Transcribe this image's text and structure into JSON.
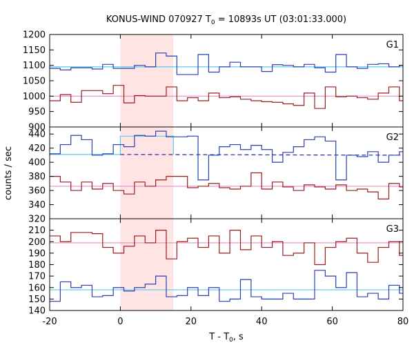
{
  "chart_data": {
    "type": "line",
    "title": "KONUS-WIND 070927 T",
    "title_sub": "0",
    "title_rest": " = 10893s UT (03:01:33.000)",
    "xlabel": "T - T",
    "xlabel_sub": "0",
    "xlabel_rest": ", s",
    "ylabel": "counts / sec",
    "xlim": [
      -20,
      80
    ],
    "xticks": [
      "-20",
      "0",
      "20",
      "40",
      "60",
      "80"
    ],
    "highlight": {
      "x_start": 0,
      "x_end": 15,
      "color": "#ffe4e4"
    },
    "colors": {
      "high": "#2a3faf",
      "low": "#9b1c1c",
      "high_bg": "#5bc7e8",
      "low_bg": "#e88cc8",
      "dashed": "#1a2a9a"
    },
    "bin_width": 3,
    "x_start": -20,
    "panels": [
      {
        "label": "G1",
        "ylim": [
          900,
          1200
        ],
        "yticks": [
          "900",
          "950",
          "1000",
          "1050",
          "1100",
          "1150",
          "1200"
        ],
        "series": [
          {
            "values": [
              1090,
              1085,
              1092,
              1092,
              1088,
              1103,
              1090,
              1090,
              1100,
              1095,
              1140,
              1130,
              1070,
              1070,
              1135,
              1078,
              1095,
              1110,
              1095,
              1095,
              1080,
              1102,
              1100,
              1095,
              1103,
              1092,
              1078,
              1135,
              1095,
              1090,
              1103,
              1105,
              1095,
              1100
            ]
          },
          {
            "values": [
              985,
              1005,
              980,
              1018,
              1018,
              1008,
              1035,
              978,
              1002,
              1000,
              1000,
              1030,
              985,
              995,
              985,
              1010,
              995,
              998,
              990,
              985,
              982,
              980,
              975,
              970,
              1010,
              960,
              1030,
              998,
              1000,
              995,
              990,
              1010,
              1030,
              985
            ]
          }
        ],
        "background": [
          {
            "type": "flat",
            "value": 1095
          },
          {
            "type": "flat",
            "value": 1000
          }
        ]
      },
      {
        "label": "G2",
        "ylim": [
          320,
          450
        ],
        "yticks": [
          "320",
          "340",
          "360",
          "380",
          "400",
          "420",
          "440"
        ],
        "series": [
          {
            "values": [
              412,
              425,
              438,
              432,
              410,
              412,
              425,
              422,
              438,
              437,
              444,
              436,
              436,
              437,
              375,
              410,
              422,
              425,
              418,
              424,
              418,
              400,
              414,
              422,
              432,
              436,
              430,
              375,
              410,
              408,
              415,
              400,
              410,
              415
            ]
          },
          {
            "values": [
              380,
              372,
              360,
              372,
              362,
              370,
              360,
              355,
              372,
              366,
              375,
              380,
              380,
              364,
              366,
              370,
              364,
              362,
              366,
              385,
              362,
              372,
              365,
              360,
              368,
              365,
              362,
              368,
              360,
              362,
              358,
              348,
              370,
              365
            ]
          }
        ],
        "background": [
          {
            "type": "flat",
            "value": 411,
            "x_end": 0
          },
          {
            "type": "flat",
            "value": 366
          }
        ],
        "source_level": {
          "value": 437,
          "x_start": 0,
          "x_end": 15
        },
        "dashed": {
          "from": 411,
          "to": 410,
          "x_start": 0,
          "x_end": 80
        }
      },
      {
        "label": "G3",
        "ylim": [
          140,
          220
        ],
        "yticks": [
          "140",
          "150",
          "160",
          "170",
          "180",
          "190",
          "200",
          "210"
        ],
        "series": [
          {
            "values": [
              148,
              165,
              160,
              162,
              152,
              153,
              160,
              157,
              160,
              163,
              170,
              152,
              153,
              160,
              153,
              160,
              148,
              150,
              167,
              152,
              150,
              150,
              155,
              150,
              150,
              175,
              170,
              160,
              173,
              152,
              155,
              150,
              162,
              155
            ]
          },
          {
            "values": [
              205,
              200,
              208,
              208,
              207,
              195,
              190,
              196,
              205,
              199,
              210,
              185,
              200,
              203,
              195,
              205,
              190,
              210,
              193,
              205,
              195,
              200,
              188,
              190,
              199,
              180,
              195,
              200,
              203,
              190,
              182,
              195,
              200,
              188
            ]
          }
        ],
        "background": [
          {
            "type": "flat",
            "value": 158
          },
          {
            "type": "flat",
            "value": 199
          }
        ]
      }
    ]
  }
}
